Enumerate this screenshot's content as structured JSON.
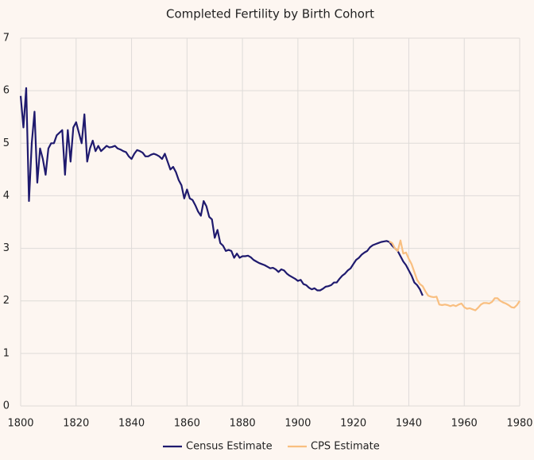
{
  "chart_data": {
    "type": "line",
    "title": "Completed Fertility by Birth Cohort",
    "xlim": [
      1800,
      1980
    ],
    "xticks": [
      1800,
      1820,
      1840,
      1860,
      1880,
      1900,
      1920,
      1940,
      1960,
      1980
    ],
    "ylim": [
      0,
      7
    ],
    "yticks": [
      0,
      1,
      2,
      3,
      4,
      5,
      6,
      7
    ],
    "grid": true,
    "legend": "bottom",
    "series": [
      {
        "name": "Census Estimate",
        "color": "#1f1a6e",
        "x": [
          1800,
          1801,
          1802,
          1803,
          1804,
          1805,
          1806,
          1807,
          1808,
          1809,
          1810,
          1811,
          1812,
          1813,
          1814,
          1815,
          1816,
          1817,
          1818,
          1819,
          1820,
          1821,
          1822,
          1823,
          1824,
          1825,
          1826,
          1827,
          1828,
          1829,
          1830,
          1831,
          1832,
          1833,
          1834,
          1835,
          1836,
          1837,
          1838,
          1839,
          1840,
          1841,
          1842,
          1843,
          1844,
          1845,
          1846,
          1847,
          1848,
          1849,
          1850,
          1851,
          1852,
          1853,
          1854,
          1855,
          1856,
          1857,
          1858,
          1859,
          1860,
          1861,
          1862,
          1863,
          1864,
          1865,
          1866,
          1867,
          1868,
          1869,
          1870,
          1871,
          1872,
          1873,
          1874,
          1875,
          1876,
          1877,
          1878,
          1879,
          1880,
          1881,
          1882,
          1883,
          1884,
          1885,
          1886,
          1887,
          1888,
          1889,
          1890,
          1891,
          1892,
          1893,
          1894,
          1895,
          1896,
          1897,
          1898,
          1899,
          1900,
          1901,
          1902,
          1903,
          1904,
          1905,
          1906,
          1907,
          1908,
          1909,
          1910,
          1911,
          1912,
          1913,
          1914,
          1915,
          1916,
          1917,
          1918,
          1919,
          1920,
          1921,
          1922,
          1923,
          1924,
          1925,
          1926,
          1927,
          1928,
          1929,
          1930,
          1931,
          1932,
          1933,
          1934,
          1935,
          1936,
          1937,
          1938,
          1939,
          1940,
          1941,
          1942,
          1943,
          1944,
          1945
        ],
        "values": [
          5.9,
          5.3,
          6.05,
          3.9,
          5.0,
          5.6,
          4.25,
          4.9,
          4.7,
          4.4,
          4.9,
          5.0,
          5.0,
          5.15,
          5.2,
          5.25,
          4.4,
          5.25,
          4.65,
          5.3,
          5.4,
          5.2,
          5.0,
          5.55,
          4.65,
          4.9,
          5.05,
          4.85,
          4.95,
          4.85,
          4.9,
          4.95,
          4.92,
          4.93,
          4.95,
          4.9,
          4.88,
          4.85,
          4.83,
          4.75,
          4.7,
          4.8,
          4.87,
          4.85,
          4.82,
          4.75,
          4.75,
          4.78,
          4.8,
          4.78,
          4.75,
          4.7,
          4.8,
          4.65,
          4.5,
          4.55,
          4.45,
          4.3,
          4.2,
          3.95,
          4.12,
          3.95,
          3.92,
          3.82,
          3.7,
          3.62,
          3.9,
          3.8,
          3.6,
          3.55,
          3.2,
          3.35,
          3.1,
          3.05,
          2.95,
          2.97,
          2.95,
          2.82,
          2.9,
          2.82,
          2.85,
          2.85,
          2.86,
          2.83,
          2.78,
          2.75,
          2.72,
          2.7,
          2.68,
          2.65,
          2.62,
          2.63,
          2.6,
          2.55,
          2.6,
          2.58,
          2.52,
          2.48,
          2.45,
          2.42,
          2.38,
          2.4,
          2.32,
          2.3,
          2.25,
          2.22,
          2.24,
          2.2,
          2.2,
          2.23,
          2.27,
          2.28,
          2.3,
          2.35,
          2.35,
          2.42,
          2.48,
          2.52,
          2.58,
          2.62,
          2.7,
          2.78,
          2.82,
          2.88,
          2.92,
          2.95,
          3.02,
          3.06,
          3.08,
          3.1,
          3.12,
          3.13,
          3.14,
          3.12,
          3.05,
          3.0,
          2.95,
          2.85,
          2.75,
          2.68,
          2.58,
          2.48,
          2.35,
          2.3,
          2.22,
          2.1
        ]
      },
      {
        "name": "CPS Estimate",
        "color": "#f9bf80",
        "x": [
          1933,
          1934,
          1935,
          1936,
          1937,
          1938,
          1939,
          1940,
          1941,
          1942,
          1943,
          1944,
          1945,
          1946,
          1947,
          1948,
          1949,
          1950,
          1951,
          1952,
          1953,
          1954,
          1955,
          1956,
          1957,
          1958,
          1959,
          1960,
          1961,
          1962,
          1963,
          1964,
          1965,
          1966,
          1967,
          1968,
          1969,
          1970,
          1971,
          1972,
          1973,
          1974,
          1975,
          1976,
          1977,
          1978,
          1979,
          1980
        ],
        "values": [
          3.13,
          3.1,
          3.0,
          2.95,
          3.15,
          2.9,
          2.92,
          2.8,
          2.7,
          2.55,
          2.4,
          2.32,
          2.28,
          2.18,
          2.1,
          2.08,
          2.07,
          2.08,
          1.93,
          1.92,
          1.93,
          1.92,
          1.9,
          1.92,
          1.9,
          1.93,
          1.95,
          1.88,
          1.85,
          1.86,
          1.84,
          1.82,
          1.87,
          1.93,
          1.96,
          1.96,
          1.95,
          1.98,
          2.05,
          2.05,
          2.0,
          1.97,
          1.95,
          1.92,
          1.88,
          1.87,
          1.92,
          2.0
        ]
      }
    ]
  }
}
